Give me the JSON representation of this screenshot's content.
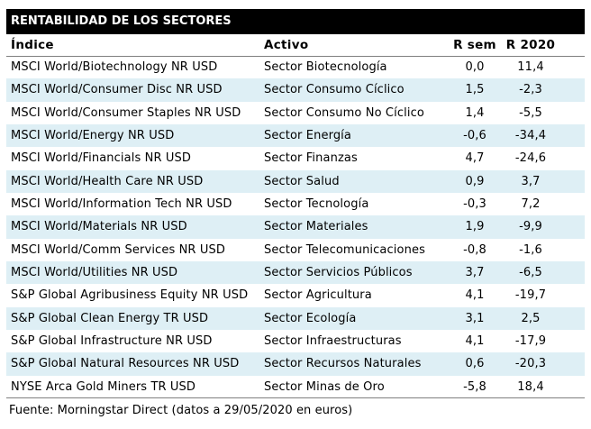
{
  "title": "RENTABILIDAD DE LOS SECTORES",
  "chart_data": {
    "type": "table",
    "title": "RENTABILIDAD DE LOS SECTORES",
    "columns": [
      "Índice",
      "Activo",
      "R sem",
      "R 2020"
    ],
    "rows": [
      [
        "MSCI World/Biotechnology NR USD",
        "Sector Biotecnología",
        "0,0",
        "11,4"
      ],
      [
        "MSCI World/Consumer Disc NR USD",
        "Sector Consumo Cíclico",
        "1,5",
        "-2,3"
      ],
      [
        "MSCI World/Consumer Staples NR USD",
        "Sector Consumo No Cíclico",
        "1,4",
        "-5,5"
      ],
      [
        "MSCI World/Energy NR USD",
        "Sector Energía",
        "-0,6",
        "-34,4"
      ],
      [
        "MSCI World/Financials NR USD",
        "Sector Finanzas",
        "4,7",
        "-24,6"
      ],
      [
        "MSCI World/Health Care NR USD",
        "Sector Salud",
        "0,9",
        "3,7"
      ],
      [
        "MSCI World/Information Tech NR USD",
        "Sector Tecnología",
        "-0,3",
        "7,2"
      ],
      [
        "MSCI World/Materials NR USD",
        "Sector Materiales",
        "1,9",
        "-9,9"
      ],
      [
        "MSCI World/Comm Services NR USD",
        "Sector Telecomunicaciones",
        "-0,8",
        "-1,6"
      ],
      [
        "MSCI World/Utilities NR USD",
        "Sector Servicios Públicos",
        "3,7",
        "-6,5"
      ],
      [
        "S&P Global Agribusiness Equity NR USD",
        "Sector Agricultura",
        "4,1",
        "-19,7"
      ],
      [
        "S&P Global Clean Energy TR USD",
        "Sector Ecología",
        "3,1",
        "2,5"
      ],
      [
        "S&P Global Infrastructure NR USD",
        "Sector Infraestructuras",
        "4,1",
        "-17,9"
      ],
      [
        "S&P Global Natural Resources NR USD",
        "Sector Recursos Naturales",
        "0,6",
        "-20,3"
      ],
      [
        "NYSE Arca Gold Miners TR USD",
        "Sector Minas de Oro",
        "-5,8",
        "18,4"
      ]
    ]
  },
  "footer": "Fuente: Morningstar Direct (datos a 29/05/2020 en euros)",
  "colors": {
    "title_bg": "#000000",
    "title_text": "#ffffff",
    "stripe": "#deeff5",
    "rule": "#808080"
  }
}
